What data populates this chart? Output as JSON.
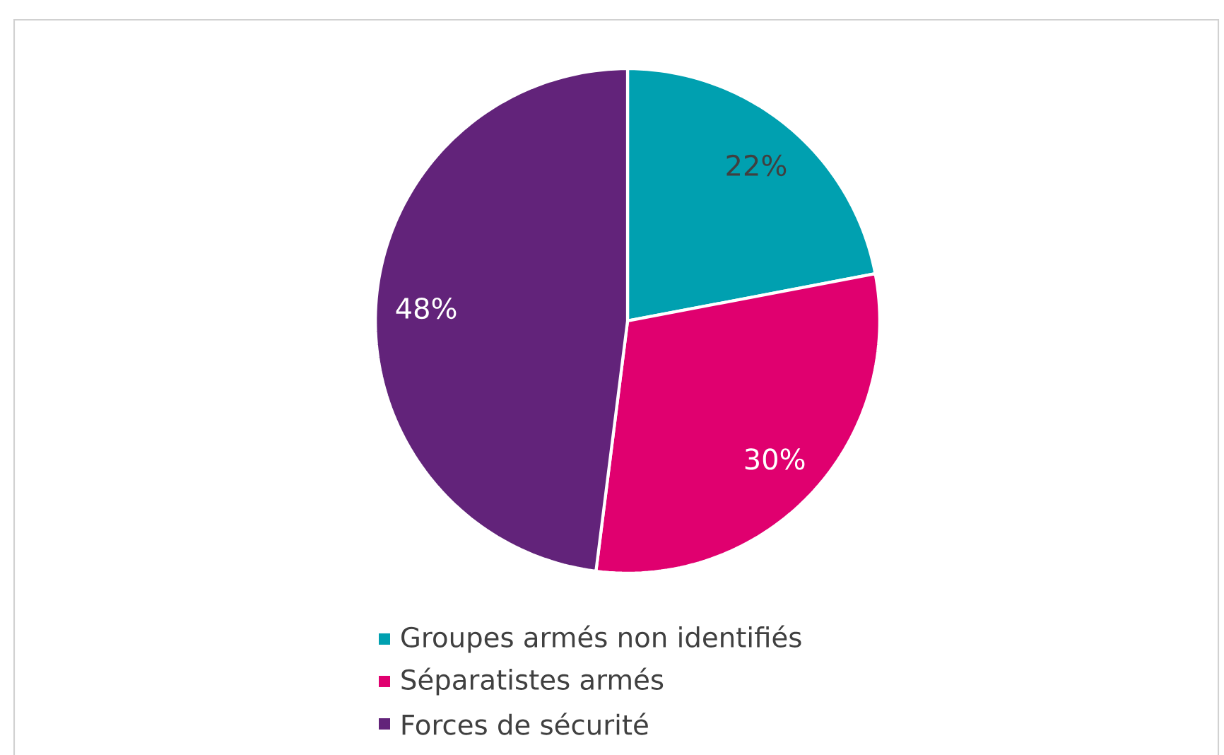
{
  "chart_data": {
    "type": "pie",
    "categories": [
      "Groupes armés non identifiés",
      "Séparatistes armés",
      "Forces de sécurité"
    ],
    "values": [
      22,
      30,
      48
    ],
    "value_labels": [
      "22%",
      "30%",
      "48%"
    ],
    "colors": [
      "#00a0b0",
      "#e0006f",
      "#62237a"
    ],
    "legend": "bottom"
  }
}
